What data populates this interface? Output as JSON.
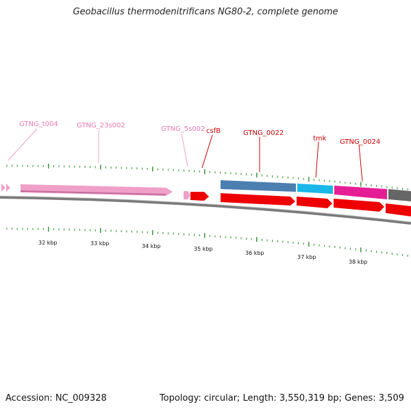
{
  "header": {
    "title": "Geobacillus thermodenitrificans NG80-2, complete genome"
  },
  "footer": {
    "accession": "Accession: NC_009328",
    "summary": "Topology: circular; Length: 3,550,319 bp; Genes: 3,509"
  },
  "genes": [
    {
      "name": "GTNG_t004",
      "color": "#f0a0c8",
      "label_color": "#e879b0"
    },
    {
      "name": "GTNG_23s002",
      "color": "#f0a0c8",
      "label_color": "#e879b0"
    },
    {
      "name": "GTNG_5s002",
      "color": "#f0a0c8",
      "label_color": "#e879b0"
    },
    {
      "name": "csfB",
      "color": "#ee0000",
      "label_color": "#cc0000"
    },
    {
      "name": "GTNG_0022",
      "color": "#4a7fb0",
      "label_color": "#cc0000"
    },
    {
      "name": "tmk",
      "color": "#1ab8e8",
      "label_color": "#cc0000"
    },
    {
      "name": "GTNG_0024",
      "color": "#e61e96",
      "label_color": "#cc0000"
    }
  ],
  "scale_ticks": [
    "32 kbp",
    "33 kbp",
    "34 kbp",
    "35 kbp",
    "36 kbp",
    "37 kbp",
    "38 kbp"
  ],
  "colors": {
    "backbone": "#8a8a8a",
    "tick": "#2a8a2a",
    "forward_rna": "#f0a0c8",
    "reverse_cds": "#ee0000",
    "dark_gene": "#666666"
  }
}
